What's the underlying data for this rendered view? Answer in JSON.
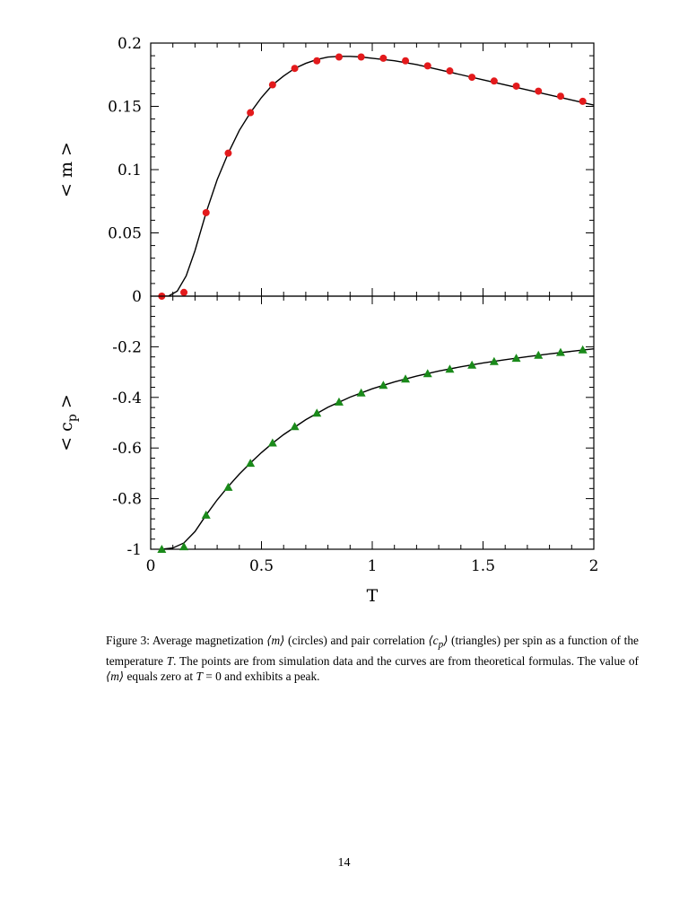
{
  "chart_data": [
    {
      "type": "scatter",
      "ylabel": "< m >",
      "xlim": [
        0,
        2
      ],
      "ylim": [
        0,
        0.2
      ],
      "yticks": [
        {
          "v": 0,
          "label": "0"
        },
        {
          "v": 0.05,
          "label": "0.05"
        },
        {
          "v": 0.1,
          "label": "0.1"
        },
        {
          "v": 0.15,
          "label": "0.15"
        },
        {
          "v": 0.2,
          "label": "0.2"
        }
      ],
      "grid": false,
      "marker": "circle",
      "marker_color": "#e31a1c",
      "line_color": "#000000",
      "points": {
        "x": [
          0.05,
          0.15,
          0.25,
          0.35,
          0.45,
          0.55,
          0.65,
          0.75,
          0.85,
          0.95,
          1.05,
          1.15,
          1.25,
          1.35,
          1.45,
          1.55,
          1.65,
          1.75,
          1.85,
          1.95
        ],
        "y": [
          0.0,
          0.003,
          0.066,
          0.113,
          0.145,
          0.167,
          0.18,
          0.186,
          0.189,
          0.189,
          0.188,
          0.186,
          0.182,
          0.178,
          0.173,
          0.17,
          0.166,
          0.162,
          0.158,
          0.154
        ]
      },
      "curve": {
        "x": [
          0.05,
          0.08,
          0.12,
          0.16,
          0.2,
          0.25,
          0.3,
          0.35,
          0.4,
          0.45,
          0.5,
          0.55,
          0.6,
          0.65,
          0.7,
          0.75,
          0.8,
          0.85,
          0.9,
          0.95,
          1.0,
          1.1,
          1.2,
          1.3,
          1.4,
          1.5,
          1.6,
          1.7,
          1.8,
          1.9,
          2.0
        ],
        "y": [
          0.0,
          0.0,
          0.004,
          0.016,
          0.036,
          0.066,
          0.092,
          0.113,
          0.131,
          0.145,
          0.157,
          0.167,
          0.174,
          0.18,
          0.184,
          0.187,
          0.189,
          0.1895,
          0.1895,
          0.189,
          0.188,
          0.186,
          0.183,
          0.179,
          0.175,
          0.171,
          0.167,
          0.163,
          0.159,
          0.155,
          0.151
        ]
      }
    },
    {
      "type": "scatter",
      "xlabel": "T",
      "ylabel": "< c",
      "ylabel_subscript": "p",
      "ylabel_tail": " >",
      "xlim": [
        0,
        2
      ],
      "ylim": [
        -1,
        0
      ],
      "xticks": [
        {
          "v": 0,
          "label": "0"
        },
        {
          "v": 0.5,
          "label": "0.5"
        },
        {
          "v": 1,
          "label": "1"
        },
        {
          "v": 1.5,
          "label": "1.5"
        },
        {
          "v": 2,
          "label": "2"
        }
      ],
      "yticks": [
        {
          "v": -1,
          "label": "-1"
        },
        {
          "v": -0.8,
          "label": "-0.8"
        },
        {
          "v": -0.6,
          "label": "-0.6"
        },
        {
          "v": -0.4,
          "label": "-0.4"
        },
        {
          "v": -0.2,
          "label": "-0.2"
        }
      ],
      "grid": false,
      "marker": "triangle",
      "marker_color": "#1a8a1a",
      "line_color": "#000000",
      "points": {
        "x": [
          0.05,
          0.15,
          0.25,
          0.35,
          0.45,
          0.55,
          0.65,
          0.75,
          0.85,
          0.95,
          1.05,
          1.15,
          1.25,
          1.35,
          1.45,
          1.55,
          1.65,
          1.75,
          1.85,
          1.95
        ],
        "y": [
          -1.0,
          -0.99,
          -0.865,
          -0.755,
          -0.66,
          -0.58,
          -0.515,
          -0.462,
          -0.418,
          -0.382,
          -0.352,
          -0.327,
          -0.306,
          -0.288,
          -0.272,
          -0.258,
          -0.245,
          -0.233,
          -0.222,
          -0.212
        ]
      },
      "curve": {
        "x": [
          0.05,
          0.1,
          0.15,
          0.2,
          0.25,
          0.3,
          0.35,
          0.4,
          0.45,
          0.5,
          0.55,
          0.6,
          0.7,
          0.8,
          0.9,
          1.0,
          1.1,
          1.2,
          1.3,
          1.4,
          1.5,
          1.6,
          1.7,
          1.8,
          1.9,
          2.0
        ],
        "y": [
          -1.0,
          -0.995,
          -0.975,
          -0.93,
          -0.865,
          -0.805,
          -0.752,
          -0.703,
          -0.659,
          -0.618,
          -0.581,
          -0.547,
          -0.488,
          -0.439,
          -0.399,
          -0.366,
          -0.339,
          -0.316,
          -0.296,
          -0.279,
          -0.264,
          -0.251,
          -0.239,
          -0.228,
          -0.218,
          -0.208
        ]
      }
    }
  ],
  "caption": {
    "prefix": "Figure 3: Average magnetization ",
    "m1": "⟨m⟩",
    "part2": " (circles) and pair correlation ",
    "cp_open": "⟨c",
    "cp_sub": "p",
    "cp_close": "⟩",
    "part3": " (triangles) per spin as a function of the temperature ",
    "t1": "T",
    "part4": ". The points are from simulation data and the curves are from theoretical formulas. The value of ",
    "m2": "⟨m⟩",
    "part5": " equals zero at ",
    "t2": "T",
    "part6": " = 0 and exhibits a peak."
  },
  "page_number": "14"
}
